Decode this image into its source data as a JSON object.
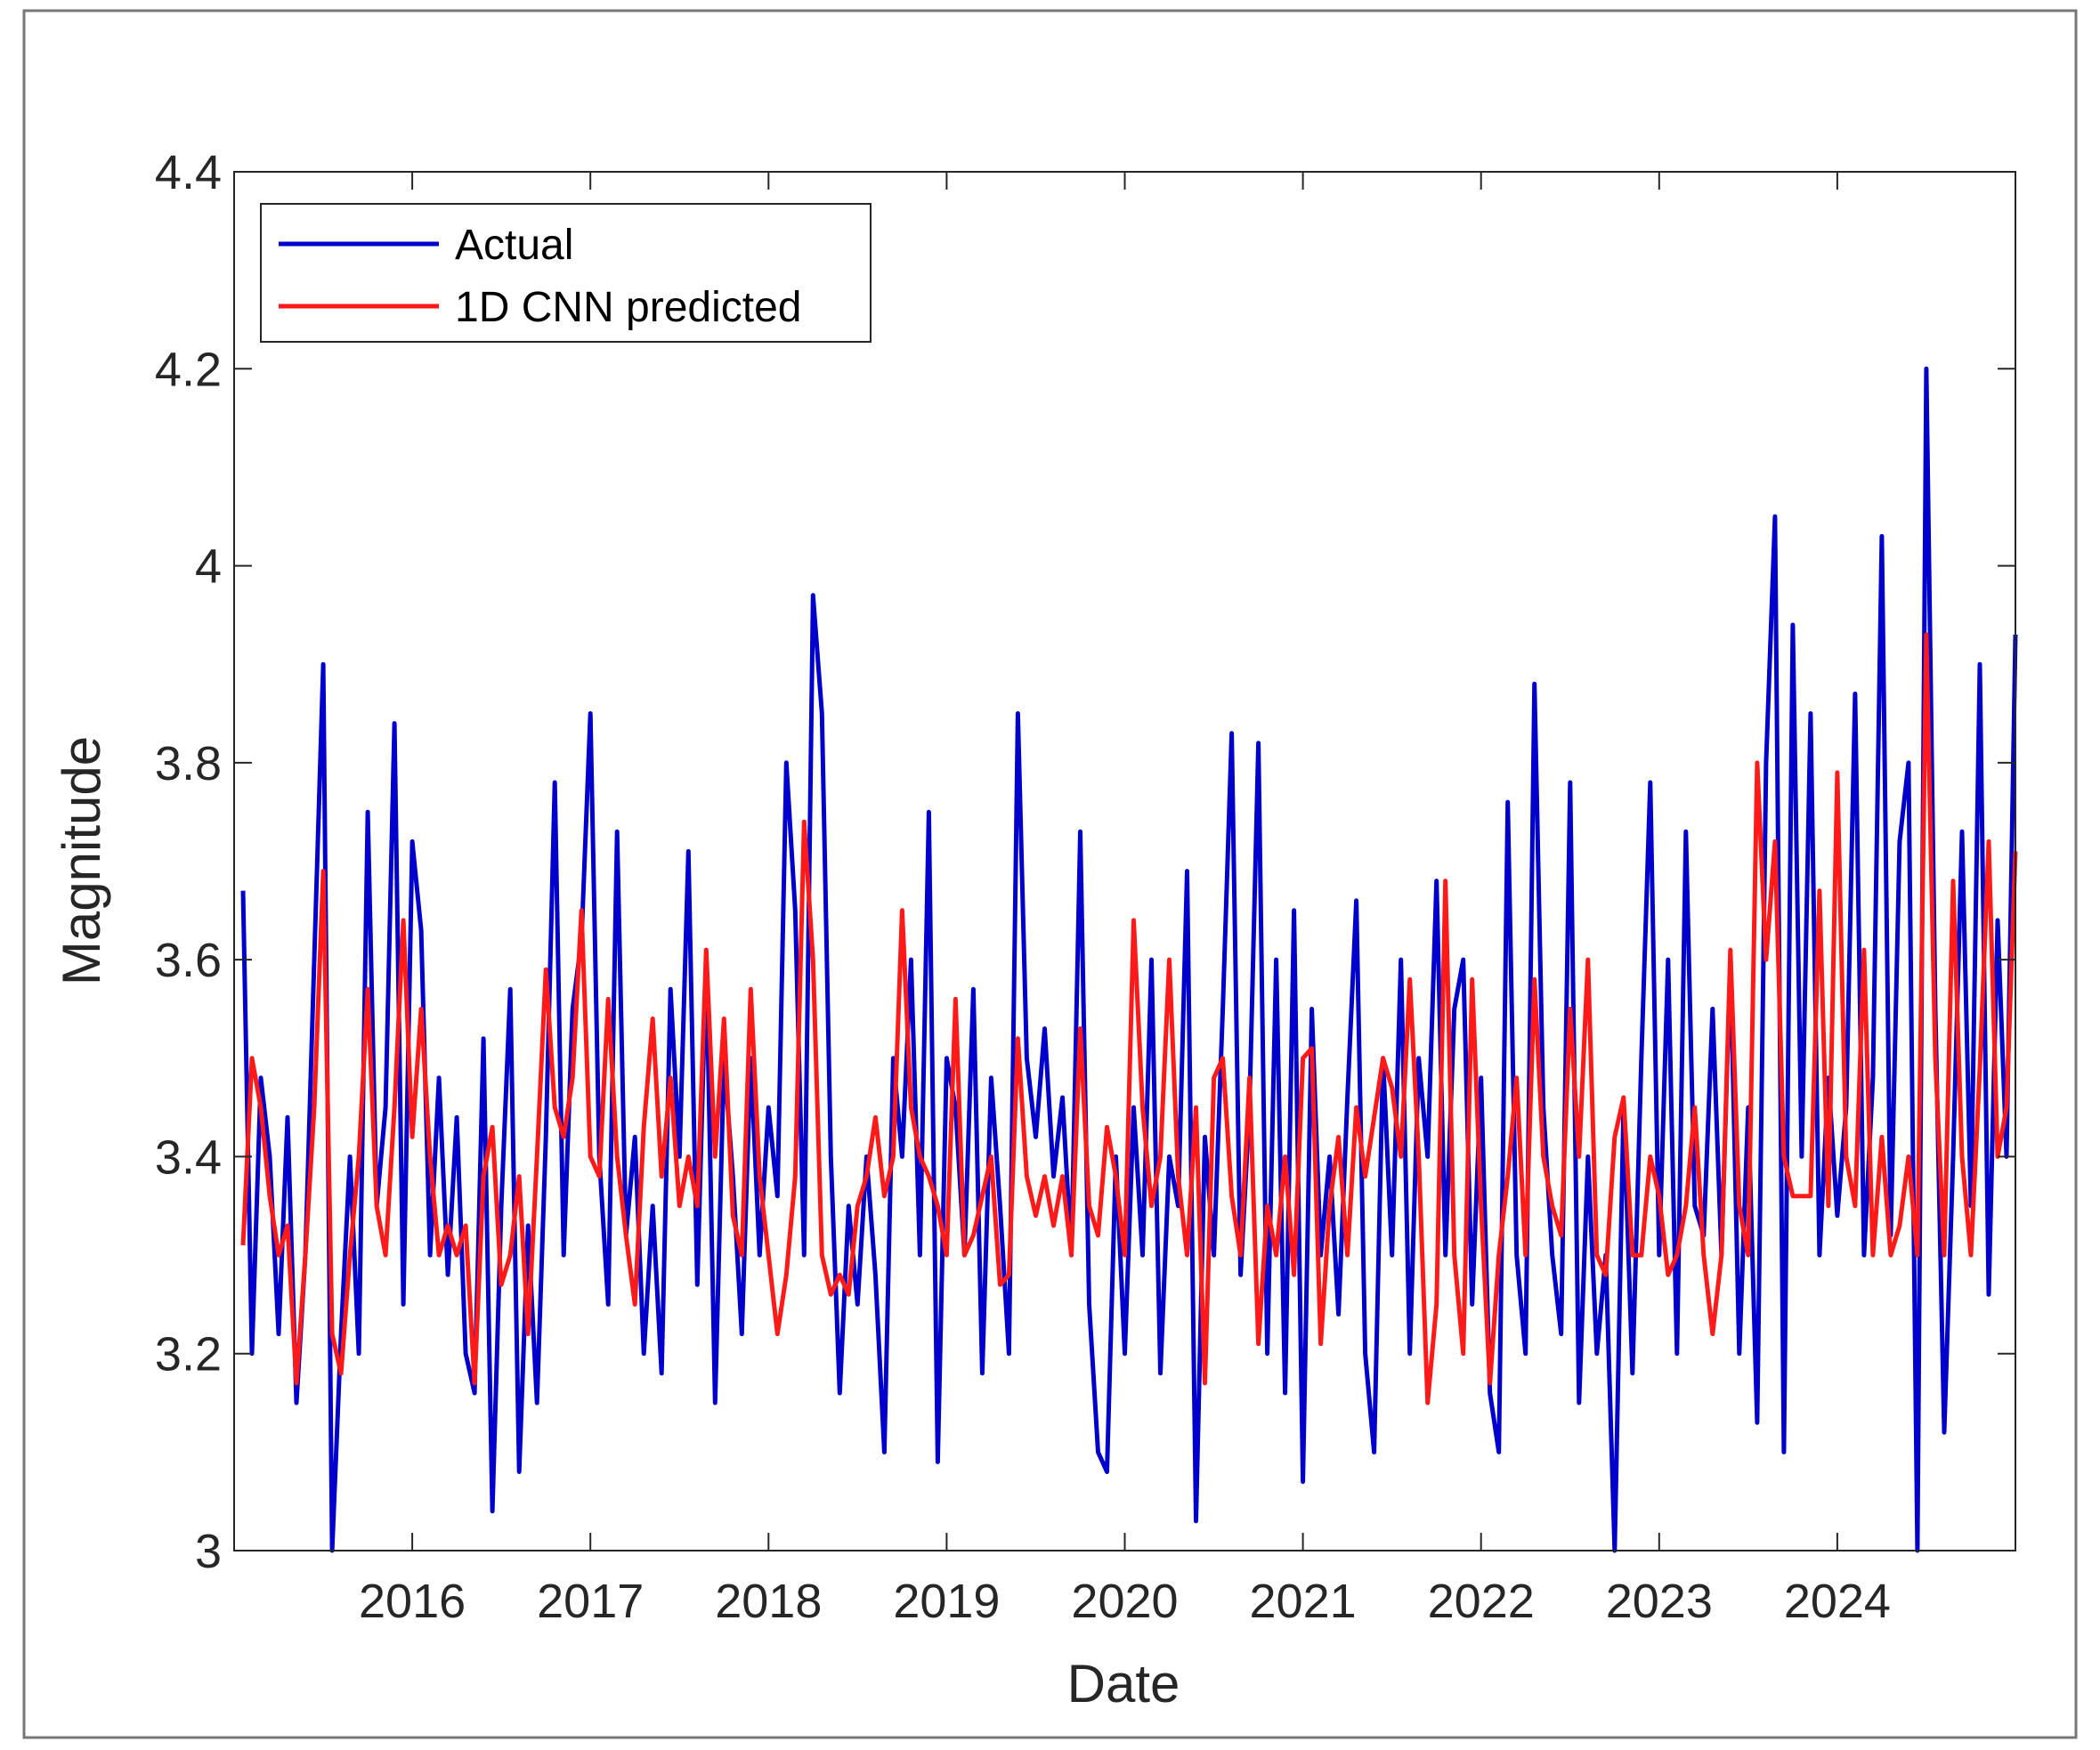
{
  "chart_data": {
    "type": "line",
    "x_label": "Date",
    "y_label": "Magnitude",
    "xlim": [
      2015,
      2025
    ],
    "xticks": [
      2016,
      2017,
      2018,
      2019,
      2020,
      2021,
      2022,
      2023,
      2024
    ],
    "ylim": [
      3,
      4.4
    ],
    "yticks": [
      3,
      3.2,
      3.4,
      3.6,
      3.8,
      4,
      4.2,
      4.4
    ],
    "grid": false,
    "legend": "upper left",
    "x": [
      2015.05,
      2015.1,
      2015.15,
      2015.2,
      2015.25,
      2015.3,
      2015.35,
      2015.4,
      2015.45,
      2015.5,
      2015.55,
      2015.6,
      2015.65,
      2015.7,
      2015.75,
      2015.8,
      2015.85,
      2015.9,
      2015.95,
      2016,
      2016.05,
      2016.1,
      2016.15,
      2016.2,
      2016.25,
      2016.3,
      2016.35,
      2016.4,
      2016.45,
      2016.5,
      2016.55,
      2016.6,
      2016.65,
      2016.7,
      2016.75,
      2016.8,
      2016.85,
      2016.9,
      2016.95,
      2017,
      2017.05,
      2017.1,
      2017.15,
      2017.2,
      2017.25,
      2017.3,
      2017.35,
      2017.4,
      2017.45,
      2017.5,
      2017.55,
      2017.6,
      2017.65,
      2017.7,
      2017.75,
      2017.8,
      2017.85,
      2017.9,
      2017.95,
      2018,
      2018.05,
      2018.1,
      2018.15,
      2018.2,
      2018.25,
      2018.3,
      2018.35,
      2018.4,
      2018.45,
      2018.5,
      2018.55,
      2018.6,
      2018.65,
      2018.7,
      2018.75,
      2018.8,
      2018.85,
      2018.9,
      2018.95,
      2019,
      2019.05,
      2019.1,
      2019.15,
      2019.2,
      2019.25,
      2019.3,
      2019.35,
      2019.4,
      2019.45,
      2019.5,
      2019.55,
      2019.6,
      2019.65,
      2019.7,
      2019.75,
      2019.8,
      2019.85,
      2019.9,
      2019.95,
      2020,
      2020.05,
      2020.1,
      2020.15,
      2020.2,
      2020.25,
      2020.3,
      2020.35,
      2020.4,
      2020.45,
      2020.5,
      2020.55,
      2020.6,
      2020.65,
      2020.7,
      2020.75,
      2020.8,
      2020.85,
      2020.9,
      2020.95,
      2021,
      2021.05,
      2021.1,
      2021.15,
      2021.2,
      2021.25,
      2021.3,
      2021.35,
      2021.4,
      2021.45,
      2021.5,
      2021.55,
      2021.6,
      2021.65,
      2021.7,
      2021.75,
      2021.8,
      2021.85,
      2021.9,
      2021.95,
      2022,
      2022.05,
      2022.1,
      2022.15,
      2022.2,
      2022.25,
      2022.3,
      2022.35,
      2022.4,
      2022.45,
      2022.5,
      2022.55,
      2022.6,
      2022.65,
      2022.7,
      2022.75,
      2022.8,
      2022.85,
      2022.9,
      2022.95,
      2023,
      2023.05,
      2023.1,
      2023.15,
      2023.2,
      2023.25,
      2023.3,
      2023.35,
      2023.4,
      2023.45,
      2023.5,
      2023.55,
      2023.6,
      2023.65,
      2023.7,
      2023.75,
      2023.8,
      2023.85,
      2023.9,
      2023.95,
      2024,
      2024.05,
      2024.1,
      2024.15,
      2024.2,
      2024.25,
      2024.3,
      2024.35,
      2024.4,
      2024.45,
      2024.5,
      2024.55,
      2024.6,
      2024.65,
      2024.7,
      2024.75,
      2024.8,
      2024.85,
      2024.9,
      2024.95,
      2025
    ],
    "series": [
      {
        "name": "Actual",
        "color": "#0000cc",
        "values": [
          3.67,
          3.2,
          3.48,
          3.4,
          3.22,
          3.44,
          3.15,
          3.3,
          3.6,
          3.9,
          3.0,
          3.22,
          3.4,
          3.2,
          3.75,
          3.35,
          3.45,
          3.84,
          3.25,
          3.72,
          3.63,
          3.3,
          3.48,
          3.28,
          3.44,
          3.2,
          3.16,
          3.52,
          3.04,
          3.35,
          3.57,
          3.08,
          3.33,
          3.15,
          3.42,
          3.78,
          3.3,
          3.55,
          3.62,
          3.85,
          3.4,
          3.25,
          3.73,
          3.32,
          3.42,
          3.2,
          3.35,
          3.18,
          3.57,
          3.4,
          3.71,
          3.27,
          3.6,
          3.15,
          3.5,
          3.38,
          3.22,
          3.5,
          3.3,
          3.45,
          3.36,
          3.8,
          3.65,
          3.3,
          3.97,
          3.85,
          3.4,
          3.16,
          3.35,
          3.25,
          3.4,
          3.28,
          3.1,
          3.5,
          3.4,
          3.6,
          3.3,
          3.75,
          3.09,
          3.5,
          3.45,
          3.3,
          3.57,
          3.18,
          3.48,
          3.35,
          3.2,
          3.85,
          3.5,
          3.42,
          3.53,
          3.38,
          3.46,
          3.3,
          3.73,
          3.25,
          3.1,
          3.08,
          3.4,
          3.2,
          3.45,
          3.3,
          3.6,
          3.18,
          3.4,
          3.35,
          3.69,
          3.03,
          3.42,
          3.3,
          3.55,
          3.83,
          3.28,
          3.45,
          3.82,
          3.2,
          3.6,
          3.16,
          3.65,
          3.07,
          3.55,
          3.3,
          3.4,
          3.24,
          3.46,
          3.66,
          3.2,
          3.1,
          3.5,
          3.3,
          3.6,
          3.2,
          3.5,
          3.4,
          3.68,
          3.3,
          3.55,
          3.6,
          3.25,
          3.48,
          3.16,
          3.1,
          3.76,
          3.3,
          3.2,
          3.88,
          3.45,
          3.3,
          3.22,
          3.78,
          3.15,
          3.4,
          3.2,
          3.3,
          3.0,
          3.45,
          3.18,
          3.5,
          3.78,
          3.3,
          3.6,
          3.2,
          3.73,
          3.35,
          3.32,
          3.55,
          3.3,
          3.6,
          3.2,
          3.45,
          3.13,
          3.8,
          4.05,
          3.1,
          3.94,
          3.4,
          3.85,
          3.3,
          3.48,
          3.34,
          3.45,
          3.87,
          3.3,
          3.48,
          4.03,
          3.32,
          3.72,
          3.8,
          3.0,
          4.2,
          3.55,
          3.12,
          3.4,
          3.73,
          3.35,
          3.9,
          3.26,
          3.64,
          3.4,
          3.93
        ]
      },
      {
        "name": "1D CNN predicted",
        "color": "#ff1a1a",
        "values": [
          3.31,
          3.5,
          3.45,
          3.36,
          3.3,
          3.33,
          3.17,
          3.3,
          3.45,
          3.69,
          3.22,
          3.18,
          3.3,
          3.4,
          3.57,
          3.35,
          3.3,
          3.45,
          3.64,
          3.42,
          3.55,
          3.4,
          3.3,
          3.33,
          3.3,
          3.33,
          3.17,
          3.38,
          3.43,
          3.27,
          3.3,
          3.38,
          3.22,
          3.4,
          3.59,
          3.45,
          3.42,
          3.48,
          3.65,
          3.4,
          3.38,
          3.56,
          3.4,
          3.32,
          3.25,
          3.43,
          3.54,
          3.38,
          3.48,
          3.35,
          3.4,
          3.35,
          3.61,
          3.4,
          3.54,
          3.34,
          3.3,
          3.57,
          3.38,
          3.3,
          3.22,
          3.28,
          3.38,
          3.74,
          3.6,
          3.3,
          3.26,
          3.28,
          3.26,
          3.35,
          3.38,
          3.44,
          3.36,
          3.4,
          3.65,
          3.45,
          3.4,
          3.38,
          3.35,
          3.3,
          3.56,
          3.3,
          3.32,
          3.36,
          3.4,
          3.27,
          3.28,
          3.52,
          3.38,
          3.34,
          3.38,
          3.33,
          3.38,
          3.3,
          3.53,
          3.35,
          3.32,
          3.43,
          3.38,
          3.3,
          3.64,
          3.45,
          3.35,
          3.4,
          3.6,
          3.38,
          3.3,
          3.45,
          3.17,
          3.48,
          3.5,
          3.36,
          3.3,
          3.48,
          3.21,
          3.35,
          3.3,
          3.4,
          3.28,
          3.5,
          3.51,
          3.21,
          3.35,
          3.42,
          3.3,
          3.45,
          3.38,
          3.44,
          3.5,
          3.47,
          3.4,
          3.58,
          3.4,
          3.15,
          3.25,
          3.68,
          3.3,
          3.2,
          3.58,
          3.35,
          3.17,
          3.3,
          3.38,
          3.48,
          3.3,
          3.58,
          3.4,
          3.35,
          3.32,
          3.55,
          3.4,
          3.6,
          3.3,
          3.28,
          3.42,
          3.46,
          3.3,
          3.3,
          3.4,
          3.36,
          3.28,
          3.3,
          3.35,
          3.45,
          3.3,
          3.22,
          3.3,
          3.61,
          3.35,
          3.3,
          3.8,
          3.6,
          3.72,
          3.4,
          3.36,
          3.36,
          3.36,
          3.67,
          3.35,
          3.79,
          3.4,
          3.35,
          3.61,
          3.3,
          3.42,
          3.3,
          3.33,
          3.4,
          3.3,
          3.93,
          3.5,
          3.3,
          3.68,
          3.4,
          3.3,
          3.49,
          3.72,
          3.4,
          3.45,
          3.71
        ]
      }
    ]
  }
}
